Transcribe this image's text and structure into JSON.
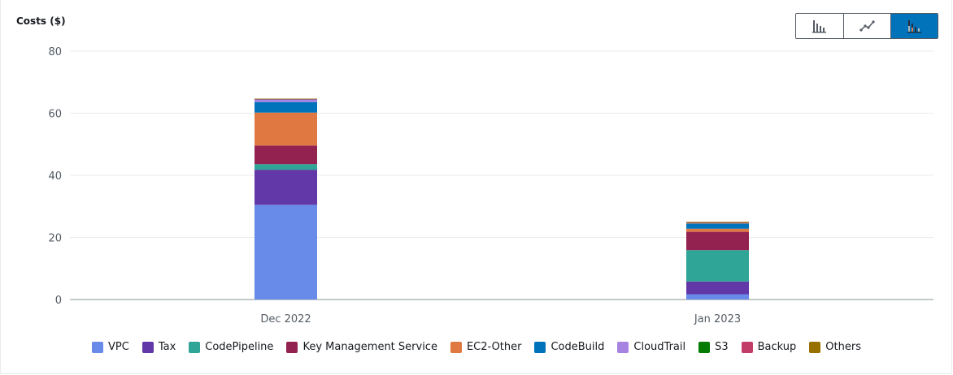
{
  "chart_data": {
    "type": "bar",
    "stacked": true,
    "ylabel": "Costs ($)",
    "ylim": [
      0,
      80
    ],
    "yticks": [
      0,
      20,
      40,
      60,
      80
    ],
    "categories": [
      "Dec 2022",
      "Jan 2023"
    ],
    "grid": true,
    "legend_placement": "bottom",
    "series": [
      {
        "name": "VPC",
        "color": "#688ae8",
        "values": [
          30.5,
          1.7
        ]
      },
      {
        "name": "Tax",
        "color": "#6237a7",
        "values": [
          11.3,
          4.1
        ]
      },
      {
        "name": "CodePipeline",
        "color": "#2ea597",
        "values": [
          1.8,
          10.1
        ]
      },
      {
        "name": "Key Management Service",
        "color": "#942251",
        "values": [
          6.0,
          5.9
        ]
      },
      {
        "name": "EC2-Other",
        "color": "#e07941",
        "values": [
          10.6,
          1.0
        ]
      },
      {
        "name": "CodeBuild",
        "color": "#0073bb",
        "values": [
          3.4,
          1.6
        ]
      },
      {
        "name": "CloudTrail",
        "color": "#a783e1",
        "values": [
          0.9,
          0.2
        ]
      },
      {
        "name": "S3",
        "color": "#067b03",
        "values": [
          0.05,
          0.05
        ]
      },
      {
        "name": "Backup",
        "color": "#c33d69",
        "values": [
          0.05,
          0.05
        ]
      },
      {
        "name": "Others",
        "color": "#987000",
        "values": [
          0.1,
          0.3
        ]
      }
    ]
  },
  "toggles": [
    {
      "name": "bar-chart-icon",
      "active": false
    },
    {
      "name": "line-chart-icon",
      "active": false
    },
    {
      "name": "stacked-bar-chart-icon",
      "active": true
    }
  ]
}
